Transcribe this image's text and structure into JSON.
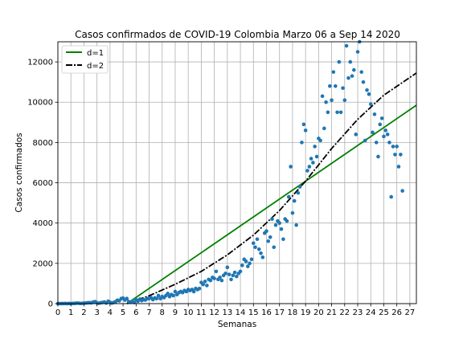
{
  "chart_data": {
    "type": "scatter",
    "title": "Casos confirmados de COVID-19 Colombia Marzo 06 a Sep 14 2020",
    "xlabel": "Semanas",
    "ylabel": "Casos confirmados",
    "xlim": [
      0,
      27.5
    ],
    "ylim": [
      0,
      13000
    ],
    "xticks": [
      0,
      1,
      2,
      3,
      4,
      5,
      6,
      7,
      8,
      9,
      10,
      11,
      12,
      13,
      14,
      15,
      16,
      17,
      18,
      19,
      20,
      21,
      22,
      23,
      24,
      25,
      26,
      27
    ],
    "yticks": [
      0,
      2000,
      4000,
      6000,
      8000,
      10000,
      12000
    ],
    "grid": true,
    "legend_position": "top-left",
    "colors": {
      "points": "#1f77b4",
      "fit_linear": "#008000",
      "fit_quadratic": "#000000",
      "grid": "#b0b0b0"
    },
    "series": [
      {
        "kind": "points",
        "points": [
          [
            0.0,
            1
          ],
          [
            0.14,
            0
          ],
          [
            0.29,
            2
          ],
          [
            0.43,
            3
          ],
          [
            0.57,
            6
          ],
          [
            0.71,
            0
          ],
          [
            0.86,
            9
          ],
          [
            1.0,
            3
          ],
          [
            1.14,
            9
          ],
          [
            1.29,
            11
          ],
          [
            1.43,
            23
          ],
          [
            1.57,
            25
          ],
          [
            1.71,
            9
          ],
          [
            1.86,
            15
          ],
          [
            2.0,
            23
          ],
          [
            2.14,
            30
          ],
          [
            2.29,
            41
          ],
          [
            2.43,
            50
          ],
          [
            2.57,
            40
          ],
          [
            2.71,
            80
          ],
          [
            2.86,
            100
          ],
          [
            3.0,
            40
          ],
          [
            3.14,
            20
          ],
          [
            3.29,
            45
          ],
          [
            3.43,
            60
          ],
          [
            3.57,
            80
          ],
          [
            3.71,
            30
          ],
          [
            3.86,
            120
          ],
          [
            4.0,
            70
          ],
          [
            4.14,
            30
          ],
          [
            4.29,
            60
          ],
          [
            4.43,
            100
          ],
          [
            4.57,
            170
          ],
          [
            4.71,
            140
          ],
          [
            4.86,
            250
          ],
          [
            5.0,
            270
          ],
          [
            5.14,
            180
          ],
          [
            5.29,
            250
          ],
          [
            5.43,
            100
          ],
          [
            5.57,
            80
          ],
          [
            5.71,
            120
          ],
          [
            5.86,
            60
          ],
          [
            6.0,
            200
          ],
          [
            6.14,
            120
          ],
          [
            6.29,
            220
          ],
          [
            6.43,
            150
          ],
          [
            6.57,
            200
          ],
          [
            6.71,
            180
          ],
          [
            6.86,
            250
          ],
          [
            7.0,
            250
          ],
          [
            7.14,
            300
          ],
          [
            7.29,
            200
          ],
          [
            7.43,
            280
          ],
          [
            7.57,
            250
          ],
          [
            7.71,
            400
          ],
          [
            7.86,
            250
          ],
          [
            8.0,
            350
          ],
          [
            8.14,
            300
          ],
          [
            8.29,
            400
          ],
          [
            8.43,
            500
          ],
          [
            8.57,
            350
          ],
          [
            8.71,
            450
          ],
          [
            8.86,
            400
          ],
          [
            9.0,
            600
          ],
          [
            9.14,
            450
          ],
          [
            9.29,
            550
          ],
          [
            9.43,
            600
          ],
          [
            9.57,
            550
          ],
          [
            9.71,
            650
          ],
          [
            9.86,
            600
          ],
          [
            10.0,
            700
          ],
          [
            10.14,
            650
          ],
          [
            10.29,
            700
          ],
          [
            10.43,
            600
          ],
          [
            10.57,
            750
          ],
          [
            10.71,
            700
          ],
          [
            10.86,
            750
          ],
          [
            11.0,
            1050
          ],
          [
            11.14,
            950
          ],
          [
            11.29,
            1100
          ],
          [
            11.43,
            900
          ],
          [
            11.57,
            1200
          ],
          [
            11.71,
            1150
          ],
          [
            11.86,
            1300
          ],
          [
            12.0,
            1250
          ],
          [
            12.14,
            1600
          ],
          [
            12.29,
            1200
          ],
          [
            12.43,
            1300
          ],
          [
            12.57,
            1150
          ],
          [
            12.71,
            1400
          ],
          [
            12.86,
            1500
          ],
          [
            13.0,
            1800
          ],
          [
            13.14,
            1450
          ],
          [
            13.29,
            1200
          ],
          [
            13.43,
            1400
          ],
          [
            13.57,
            1550
          ],
          [
            13.71,
            1350
          ],
          [
            13.86,
            1500
          ],
          [
            14.0,
            1600
          ],
          [
            14.14,
            1900
          ],
          [
            14.29,
            2200
          ],
          [
            14.43,
            2100
          ],
          [
            14.57,
            1850
          ],
          [
            14.71,
            2000
          ],
          [
            14.86,
            2200
          ],
          [
            15.0,
            3000
          ],
          [
            15.14,
            2800
          ],
          [
            15.29,
            3200
          ],
          [
            15.43,
            2700
          ],
          [
            15.57,
            2500
          ],
          [
            15.71,
            2300
          ],
          [
            15.86,
            3500
          ],
          [
            16.0,
            3600
          ],
          [
            16.14,
            3100
          ],
          [
            16.29,
            3300
          ],
          [
            16.43,
            4200
          ],
          [
            16.57,
            2800
          ],
          [
            16.71,
            3900
          ],
          [
            16.86,
            4100
          ],
          [
            17.0,
            4000
          ],
          [
            17.14,
            3700
          ],
          [
            17.29,
            3200
          ],
          [
            17.43,
            4200
          ],
          [
            17.57,
            4100
          ],
          [
            17.71,
            5300
          ],
          [
            17.86,
            6800
          ],
          [
            18.0,
            4500
          ],
          [
            18.14,
            5100
          ],
          [
            18.29,
            3900
          ],
          [
            18.43,
            5500
          ],
          [
            18.57,
            5800
          ],
          [
            18.71,
            8000
          ],
          [
            18.86,
            8900
          ],
          [
            19.0,
            8600
          ],
          [
            19.14,
            6600
          ],
          [
            19.29,
            6800
          ],
          [
            19.43,
            7200
          ],
          [
            19.57,
            7000
          ],
          [
            19.71,
            7800
          ],
          [
            19.86,
            7300
          ],
          [
            20.0,
            8200
          ],
          [
            20.14,
            8100
          ],
          [
            20.29,
            10300
          ],
          [
            20.43,
            8700
          ],
          [
            20.57,
            10000
          ],
          [
            20.71,
            9500
          ],
          [
            20.86,
            10800
          ],
          [
            21.0,
            10100
          ],
          [
            21.14,
            11500
          ],
          [
            21.29,
            10800
          ],
          [
            21.43,
            9500
          ],
          [
            21.57,
            12000
          ],
          [
            21.71,
            9500
          ],
          [
            21.86,
            10700
          ],
          [
            22.0,
            10100
          ],
          [
            22.14,
            12800
          ],
          [
            22.29,
            11200
          ],
          [
            22.43,
            12000
          ],
          [
            22.57,
            11300
          ],
          [
            22.71,
            11600
          ],
          [
            22.86,
            8400
          ],
          [
            23.0,
            12500
          ],
          [
            23.14,
            13000
          ],
          [
            23.29,
            11500
          ],
          [
            23.43,
            11000
          ],
          [
            23.57,
            8100
          ],
          [
            23.71,
            10600
          ],
          [
            23.86,
            10400
          ],
          [
            24.0,
            9900
          ],
          [
            24.14,
            8500
          ],
          [
            24.29,
            9400
          ],
          [
            24.43,
            8000
          ],
          [
            24.57,
            7300
          ],
          [
            24.71,
            8900
          ],
          [
            24.86,
            9200
          ],
          [
            25.0,
            8300
          ],
          [
            25.14,
            8600
          ],
          [
            25.29,
            8400
          ],
          [
            25.43,
            8000
          ],
          [
            25.57,
            5300
          ],
          [
            25.71,
            7800
          ],
          [
            25.86,
            7400
          ],
          [
            26.0,
            7800
          ],
          [
            26.14,
            6800
          ],
          [
            26.29,
            7400
          ],
          [
            26.43,
            5600
          ]
        ]
      },
      {
        "name": "d=1",
        "kind": "line",
        "style": "solid",
        "points": [
          [
            5.3,
            0
          ],
          [
            27.5,
            9850
          ]
        ]
      },
      {
        "name": "d=2",
        "kind": "line",
        "style": "dashdot",
        "points": [
          [
            5.3,
            0
          ],
          [
            7,
            390
          ],
          [
            9,
            960
          ],
          [
            11,
            1600
          ],
          [
            13,
            2420
          ],
          [
            15,
            3400
          ],
          [
            17,
            4620
          ],
          [
            19,
            6080
          ],
          [
            21,
            7700
          ],
          [
            23,
            9150
          ],
          [
            25,
            10350
          ],
          [
            27.5,
            11450
          ]
        ]
      }
    ]
  }
}
